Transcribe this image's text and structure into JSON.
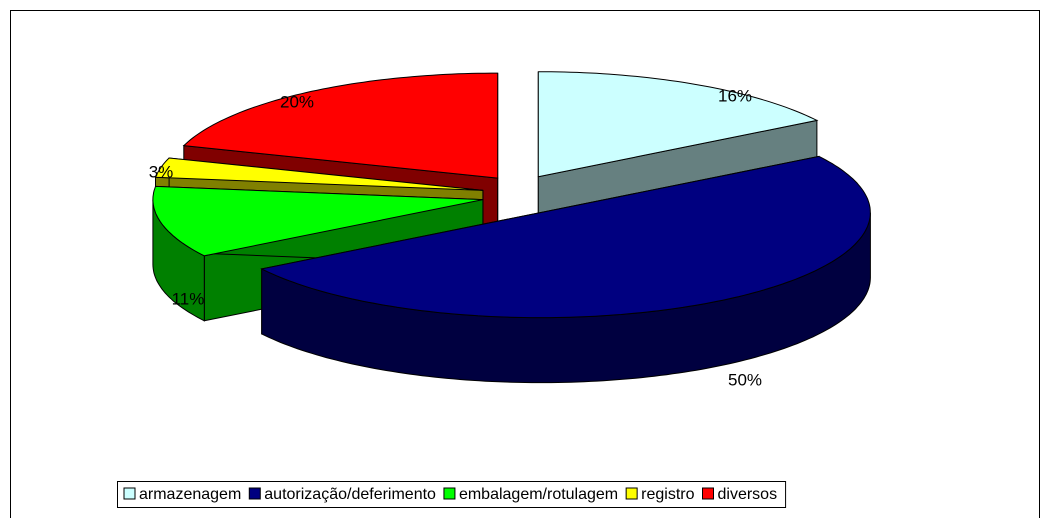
{
  "chart_data": {
    "type": "pie3d",
    "categories": [
      "armazenagem",
      "autorização/deferimento",
      "embalagem/rotulagem",
      "registro",
      "diversos"
    ],
    "values": [
      16,
      50,
      11,
      3,
      20
    ],
    "value_labels": [
      "16%",
      "50%",
      "11%",
      "3%",
      "20%"
    ],
    "colors": [
      "#ccffff",
      "#000080",
      "#00ff00",
      "#ffff00",
      "#ff0000"
    ],
    "legend": "bottom"
  }
}
